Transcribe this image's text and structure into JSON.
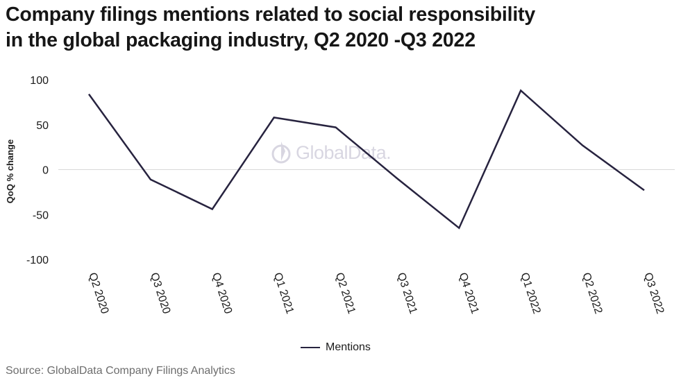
{
  "title_line1": "Company filings mentions related to social responsibility",
  "title_line2": "in the global packaging industry, Q2 2020 -Q3 2022",
  "source": "Source: GlobalData Company Filings Analytics",
  "watermark": "GlobalData.",
  "colors": {
    "line": "#27233f",
    "zero_line": "#d9d9d9",
    "text": "#1b1b1b",
    "watermark": "#b9b6c9"
  },
  "chart_data": {
    "type": "line",
    "categories": [
      "Q2 2020",
      "Q3 2020",
      "Q4 2020",
      "Q1 2021",
      "Q2 2021",
      "Q3 2021",
      "Q4 2021",
      "Q1 2022",
      "Q2 2022",
      "Q3 2022"
    ],
    "series": [
      {
        "name": "Mentions",
        "values": [
          84,
          -11,
          -44,
          58,
          47,
          -10,
          -65,
          88,
          27,
          -23
        ]
      }
    ],
    "ylabel": "QoQ % change",
    "ylim": [
      -100,
      100
    ],
    "yticks": [
      100,
      50,
      0,
      -50,
      -100
    ],
    "ytick_labels": [
      "100",
      "50",
      "0",
      "-50",
      "-100"
    ],
    "grid": false,
    "legend": "bottom-center"
  }
}
